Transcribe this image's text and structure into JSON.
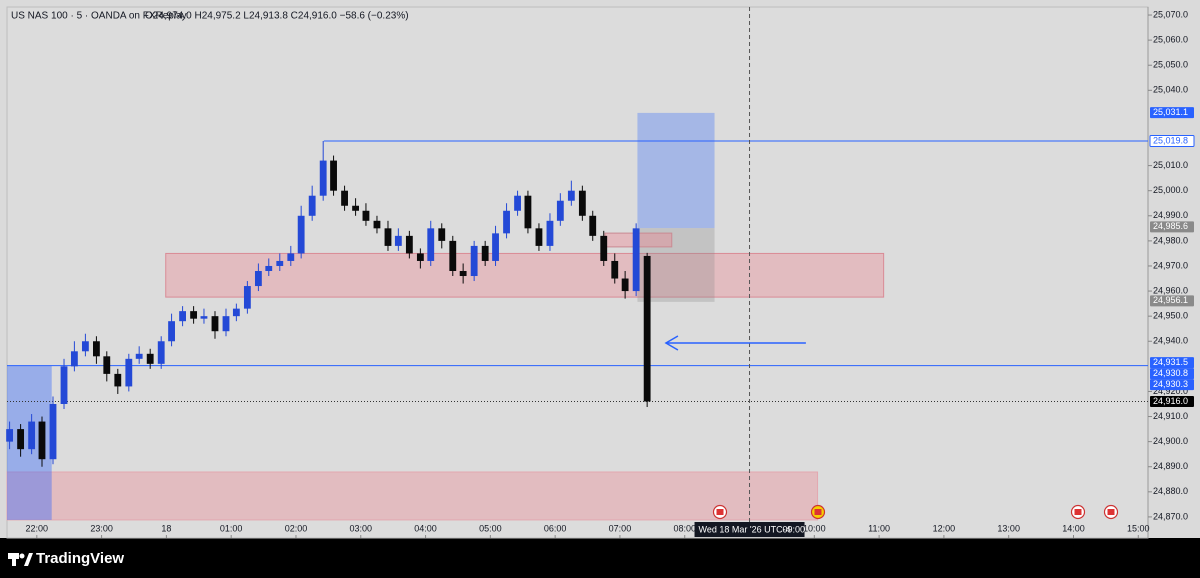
{
  "chart_data": {
    "type": "candlestick",
    "title": "US NAS 100 · 5 · OANDA on FXReplay",
    "ohlc_text": "O24,974.0 H24,975.2 L24,913.8 C24,916.0 −58.6 (−0.23%)",
    "brand": "TradingView",
    "up_color": "#2449d6",
    "down_color": "#0a0a0a",
    "grid": false,
    "x": [
      21.58,
      21.75,
      21.92,
      22.08,
      22.25,
      22.42,
      22.58,
      22.75,
      22.92,
      23.08,
      23.25,
      23.42,
      23.58,
      23.75,
      23.92,
      24.08,
      24.25,
      24.42,
      24.58,
      24.75,
      24.92,
      25.08,
      25.25,
      25.42,
      25.58,
      25.75,
      25.92,
      26.08,
      26.25,
      26.42,
      26.58,
      26.75,
      26.92,
      27.08,
      27.25,
      27.42,
      27.58,
      27.75,
      27.92,
      28.08,
      28.25,
      28.42,
      28.58,
      28.75,
      28.92,
      29.08,
      29.25,
      29.42,
      29.58,
      29.75,
      29.92,
      30.08,
      30.25,
      30.42,
      30.58,
      30.75,
      30.92,
      31.08,
      31.25,
      31.42
    ],
    "open": [
      24900,
      24905,
      24897,
      24908,
      24893,
      24915,
      24930,
      24936,
      24940,
      24934,
      24927,
      24922,
      24933,
      24935,
      24931,
      24940,
      24948,
      24952,
      24949,
      24950,
      24944,
      24950,
      24953,
      24962,
      24968,
      24970,
      24972,
      24975,
      24990,
      24998,
      25012,
      25000,
      24994,
      24992,
      24988,
      24985,
      24978,
      24982,
      24975,
      24972,
      24985,
      24980,
      24968,
      24966,
      24978,
      24972,
      24983,
      24992,
      24998,
      24985,
      24978,
      24988,
      24996,
      25000,
      24990,
      24982,
      24972,
      24965,
      24960,
      24974.0
    ],
    "high": [
      24908,
      24907,
      24911,
      24910,
      24918,
      24933,
      24940,
      24943,
      24942,
      24936,
      24929,
      24935,
      24938,
      24937,
      24942,
      24951,
      24954,
      24954,
      24953,
      24952,
      24953,
      24955,
      24964,
      24971,
      24973,
      24975,
      24978,
      24994,
      25002,
      25019.8,
      25014,
      25002,
      24997,
      24995,
      24990,
      24988,
      24985,
      24984,
      24977,
      24988,
      24987,
      24982,
      24971,
      24980,
      24980,
      24986,
      24995,
      25000,
      25000,
      24987,
      24991,
      24999,
      25004,
      25002,
      24992,
      24984,
      24975,
      24968,
      24987,
      24975.2
    ],
    "low": [
      24897,
      24894,
      24895,
      24890,
      24891,
      24913,
      24928,
      24934,
      24931,
      24924,
      24919,
      24920,
      24931,
      24929,
      24929,
      24938,
      24946,
      24947,
      24947,
      24941,
      24942,
      24948,
      24951,
      24960,
      24966,
      24968,
      24970,
      24973,
      24988,
      24996,
      24998,
      24992,
      24990,
      24986,
      24983,
      24976,
      24976,
      24973,
      24969,
      24970,
      24977,
      24966,
      24963,
      24964,
      24970,
      24970,
      24981,
      24990,
      24983,
      24976,
      24976,
      24986,
      24994,
      24988,
      24980,
      24970,
      24963,
      24957,
      24958,
      24913.8
    ],
    "close": [
      24905,
      24897,
      24908,
      24893,
      24915,
      24930,
      24936,
      24940,
      24934,
      24927,
      24922,
      24933,
      24935,
      24931,
      24940,
      24948,
      24952,
      24949,
      24950,
      24944,
      24950,
      24953,
      24962,
      24968,
      24970,
      24972,
      24975,
      24990,
      24998,
      25012,
      25000,
      24994,
      24992,
      24988,
      24985,
      24978,
      24982,
      24975,
      24972,
      24985,
      24980,
      24968,
      24966,
      24978,
      24972,
      24983,
      24992,
      24998,
      24985,
      24978,
      24988,
      24996,
      25000,
      24990,
      24982,
      24972,
      24965,
      24960,
      24985,
      24916.0
    ],
    "xlim": [
      21.54,
      39.15
    ],
    "xticks": [
      {
        "value": 22,
        "label": "22:00"
      },
      {
        "value": 23,
        "label": "23:00"
      },
      {
        "value": 24,
        "label": "18"
      },
      {
        "value": 25,
        "label": "01:00"
      },
      {
        "value": 26,
        "label": "02:00"
      },
      {
        "value": 27,
        "label": "03:00"
      },
      {
        "value": 28,
        "label": "04:00"
      },
      {
        "value": 29,
        "label": "05:00"
      },
      {
        "value": 30,
        "label": "06:00"
      },
      {
        "value": 31,
        "label": "07:00"
      },
      {
        "value": 32,
        "label": "08:00"
      },
      {
        "value": 34,
        "label": "10:00"
      },
      {
        "value": 35,
        "label": "11:00"
      },
      {
        "value": 36,
        "label": "12:00"
      },
      {
        "value": 37,
        "label": "13:00"
      },
      {
        "value": 38,
        "label": "14:00"
      },
      {
        "value": 39,
        "label": "15:00"
      }
    ],
    "ylim": [
      24861.6,
      25073.2
    ],
    "yticks": [
      {
        "value": 24870,
        "label": "24,870.0"
      },
      {
        "value": 24880,
        "label": "24,880.0"
      },
      {
        "value": 24890,
        "label": "24,890.0"
      },
      {
        "value": 24900,
        "label": "24,900.0"
      },
      {
        "value": 24910,
        "label": "24,910.0"
      },
      {
        "value": 24920,
        "label": "24,920.0"
      },
      {
        "value": 24940,
        "label": "24,940.0"
      },
      {
        "value": 24950,
        "label": "24,950.0"
      },
      {
        "value": 24960,
        "label": "24,960.0"
      },
      {
        "value": 24970,
        "label": "24,970.0"
      },
      {
        "value": 24980,
        "label": "24,980.0"
      },
      {
        "value": 24990,
        "label": "24,990.0"
      },
      {
        "value": 25000,
        "label": "25,000.0"
      },
      {
        "value": 25010,
        "label": "25,010.0"
      },
      {
        "value": 25040,
        "label": "25,040.0"
      },
      {
        "value": 25050,
        "label": "25,050.0"
      },
      {
        "value": 25060,
        "label": "25,060.0"
      },
      {
        "value": 25070,
        "label": "25,070.0"
      }
    ],
    "price_labels": [
      {
        "value": 25031.1,
        "label": "25,031.1",
        "color": "#2962ff",
        "text_color": "#ffffff"
      },
      {
        "value": 25019.8,
        "label": "25,019.8",
        "color": "#ffffff",
        "text_color": "#2962ff"
      },
      {
        "value": 24985.6,
        "label": "24,985.6",
        "color": "#8a8a8a",
        "text_color": "#ffffff"
      },
      {
        "value": 24956.1,
        "label": "24,956.1",
        "color": "#8a8a8a",
        "text_color": "#ffffff"
      },
      {
        "value": 24931.5,
        "label": "24,931.5",
        "color": "#2962ff",
        "text_color": "#ffffff"
      },
      {
        "value": 24930.8,
        "label": "24,930.8",
        "color": "#2962ff",
        "text_color": "#ffffff"
      },
      {
        "value": 24930.3,
        "label": "24,930.3",
        "color": "#2962ff",
        "text_color": "#ffffff"
      },
      {
        "value": 24916.0,
        "label": "24,916.0",
        "color": "#000000",
        "text_color": "#ffffff"
      }
    ],
    "zones": [
      {
        "x": [
          21.54,
          34.05
        ],
        "y": [
          24868.8,
          24887.9
        ],
        "color": "rgba(240,120,135,0.32)",
        "border": "#e3a8b0"
      },
      {
        "x": [
          21.54,
          22.23
        ],
        "y": [
          24868.8,
          24930.2
        ],
        "color": "rgba(41,98,255,0.38)",
        "border": "none"
      },
      {
        "x": [
          23.99,
          35.07
        ],
        "y": [
          24957.6,
          24975.0
        ],
        "color": "rgba(240,120,135,0.32)",
        "border": "#d98a96"
      },
      {
        "x": [
          31.27,
          32.46
        ],
        "y": [
          24985.1,
          25031.0
        ],
        "color": "rgba(41,98,255,0.3)",
        "border": "none"
      },
      {
        "x": [
          31.27,
          32.46
        ],
        "y": [
          24955.7,
          24985.1
        ],
        "color": "rgba(140,140,140,0.3)",
        "border": "none"
      },
      {
        "x": [
          30.77,
          31.8
        ],
        "y": [
          24977.6,
          24983.1
        ],
        "color": "rgba(240,120,135,0.35)",
        "border": "#c98a92"
      }
    ],
    "hlines": [
      {
        "value": 25019.8,
        "from": 26.43,
        "color": "#2962ff",
        "dash": "none"
      },
      {
        "value": 24930.3,
        "from": 21.54,
        "color": "#2962ff",
        "dash": "none"
      },
      {
        "value": 24916.0,
        "from": 21.54,
        "color": "#333333",
        "dash": "1,2"
      }
    ],
    "arrow": {
      "x": [
        33.87,
        31.71
      ],
      "value": 24939.3,
      "color": "#2962ff"
    },
    "crosshair": {
      "x": 33,
      "date_label": "Wed 18 Mar '26 UTC-4",
      "time_label": "09:00"
    }
  }
}
